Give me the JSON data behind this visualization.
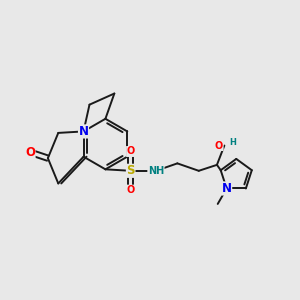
{
  "bg_color": "#e8e8e8",
  "bond_color": "#1a1a1a",
  "bond_width": 1.4,
  "atom_colors": {
    "O": "#ff0000",
    "N": "#0000ee",
    "S": "#bbaa00",
    "NH": "#008080",
    "OH_O": "#ff0000",
    "OH_H": "#008080"
  },
  "font_size": 8.5,
  "font_size_small": 7.0
}
